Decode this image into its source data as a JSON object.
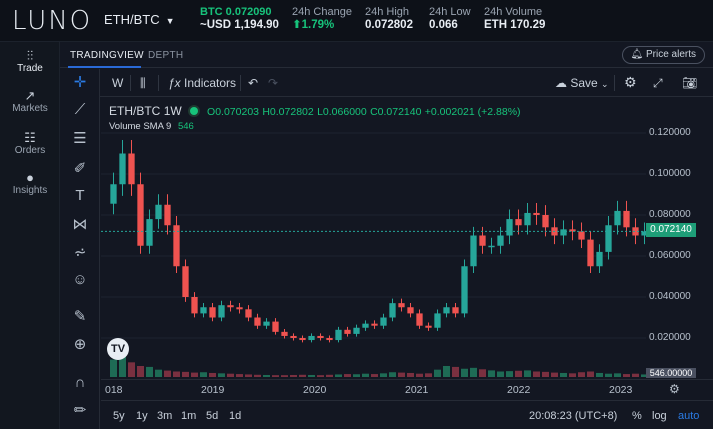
{
  "header": {
    "logo": "LUNO",
    "pair": "ETH/BTC",
    "last_price_label": "BTC 0.072090",
    "last_price_fiat": "~USD 1,194.90",
    "change_label": "24h Change",
    "change_value": "1.79%",
    "high_label": "24h High",
    "high_value": "0.072802",
    "low_label": "24h Low",
    "low_value": "0.066",
    "volume_label": "24h Volume",
    "volume_value": "ETH 170.29"
  },
  "nav": {
    "items": [
      {
        "label": "Trade",
        "icon": "trade-icon"
      },
      {
        "label": "Markets",
        "icon": "markets-icon"
      },
      {
        "label": "Orders",
        "icon": "orders-icon"
      },
      {
        "label": "Insights",
        "icon": "insights-icon"
      }
    ]
  },
  "tabs": {
    "tradingview": "TRADINGVIEW",
    "depth": "DEPTH",
    "price_alerts": "Price alerts"
  },
  "toolbar": {
    "interval": "W",
    "indicators": "Indicators",
    "save": "Save"
  },
  "legend": {
    "symbol": "ETH/BTC",
    "interval": "1W",
    "open": "O0.070203",
    "high": "H0.072802",
    "low": "L0.066000",
    "close": "C0.072140",
    "change": "+0.002021 (+2.88%)",
    "volume_label": "Volume",
    "sma_label": "SMA 9",
    "volume_value": "546"
  },
  "axis": {
    "y_ticks": [
      "0.120000",
      "0.100000",
      "0.080000",
      "0.060000",
      "0.040000",
      "0.020000"
    ],
    "current_price_tag": "0.072140",
    "volume_tag": "546.00000",
    "x_ticks": [
      "018",
      "2019",
      "2020",
      "2021",
      "2022",
      "2023"
    ]
  },
  "bottom": {
    "ranges": [
      "5y",
      "1y",
      "3m",
      "1m",
      "5d",
      "1d"
    ],
    "time": "20:08:23 (UTC+8)",
    "percent": "%",
    "log": "log",
    "auto": "auto"
  },
  "chart_data": {
    "type": "line",
    "title": "ETH/BTC",
    "ylim": [
      0,
      0.13
    ],
    "x": [
      "2018-01",
      "2018-02",
      "2018-03",
      "2018-04",
      "2018-05",
      "2018-06",
      "2018-07",
      "2018-08",
      "2018-09",
      "2018-10",
      "2018-11",
      "2018-12",
      "2019-01",
      "2019-02",
      "2019-03",
      "2019-04",
      "2019-05",
      "2019-06",
      "2019-07",
      "2019-08",
      "2019-09",
      "2019-10",
      "2019-11",
      "2019-12",
      "2020-01",
      "2020-02",
      "2020-03",
      "2020-04",
      "2020-05",
      "2020-06",
      "2020-07",
      "2020-08",
      "2020-09",
      "2020-10",
      "2020-11",
      "2020-12",
      "2021-01",
      "2021-02",
      "2021-03",
      "2021-04",
      "2021-05",
      "2021-06",
      "2021-07",
      "2021-08",
      "2021-09",
      "2021-10",
      "2021-11",
      "2021-12",
      "2022-01",
      "2022-02",
      "2022-03",
      "2022-04",
      "2022-05",
      "2022-06",
      "2022-07",
      "2022-08",
      "2022-09",
      "2022-10",
      "2022-11",
      "2022-12"
    ],
    "series": [
      {
        "values": [
          0.095,
          0.11,
          0.095,
          0.065,
          0.078,
          0.085,
          0.075,
          0.055,
          0.04,
          0.032,
          0.035,
          0.03,
          0.036,
          0.035,
          0.034,
          0.03,
          0.026,
          0.028,
          0.023,
          0.021,
          0.02,
          0.019,
          0.021,
          0.02,
          0.019,
          0.024,
          0.022,
          0.025,
          0.027,
          0.026,
          0.03,
          0.037,
          0.035,
          0.032,
          0.026,
          0.025,
          0.032,
          0.035,
          0.032,
          0.055,
          0.07,
          0.065,
          0.065,
          0.07,
          0.078,
          0.075,
          0.081,
          0.08,
          0.074,
          0.07,
          0.073,
          0.072,
          0.068,
          0.055,
          0.062,
          0.075,
          0.082,
          0.074,
          0.07,
          0.072
        ]
      },
      {
        "values": [
          95,
          120,
          80,
          60,
          55,
          40,
          35,
          30,
          28,
          24,
          26,
          22,
          20,
          18,
          16,
          14,
          12,
          11,
          10,
          10,
          11,
          12,
          11,
          10,
          12,
          14,
          16,
          15,
          18,
          16,
          20,
          26,
          24,
          22,
          18,
          20,
          40,
          60,
          55,
          45,
          50,
          42,
          36,
          30,
          32,
          34,
          36,
          30,
          28,
          24,
          22,
          20,
          26,
          30,
          22,
          18,
          20,
          16,
          18,
          14
        ]
      }
    ]
  }
}
